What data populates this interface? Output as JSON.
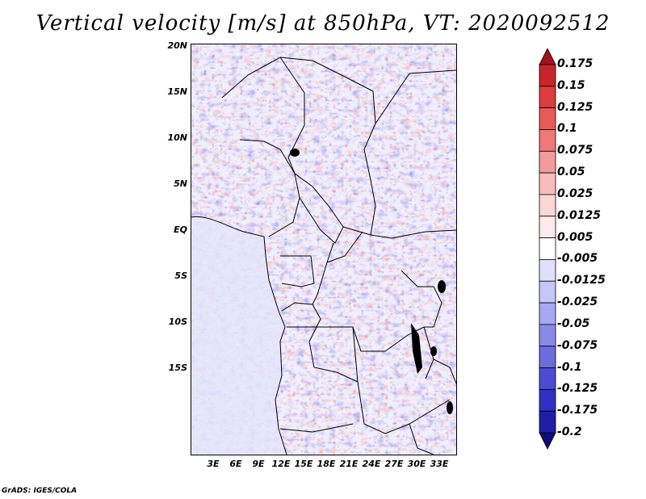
{
  "title": "Vertical velocity [m/s] at 850hPa, VT: 2020092512",
  "credit": "GrADS: IGES/COLA",
  "map": {
    "lat_labels": [
      "20N",
      "15N",
      "10N",
      "5N",
      "EQ",
      "5S",
      "10S",
      "15S"
    ],
    "lon_labels": [
      "3E",
      "6E",
      "9E",
      "12E",
      "15E",
      "18E",
      "21E",
      "24E",
      "27E",
      "30E",
      "33E"
    ]
  },
  "colorbar": {
    "levels": [
      "0.175",
      "0.15",
      "0.125",
      "0.1",
      "0.075",
      "0.05",
      "0.025",
      "0.0125",
      "0.005",
      "-0.005",
      "-0.0125",
      "-0.025",
      "-0.05",
      "-0.075",
      "-0.1",
      "-0.125",
      "-0.175",
      "-0.2"
    ],
    "colors": [
      "#a0141e",
      "#c8252a",
      "#dc3c3c",
      "#e85a5a",
      "#f07878",
      "#f59a9a",
      "#f9bcbc",
      "#fbd6d6",
      "#fdeaea",
      "#ffffff",
      "#e0e0fc",
      "#c6c6f8",
      "#a8a8f0",
      "#8a8ae6",
      "#6c6cdc",
      "#4c4cd2",
      "#3030c4",
      "#1e1ea8",
      "#0c0c7c"
    ]
  }
}
